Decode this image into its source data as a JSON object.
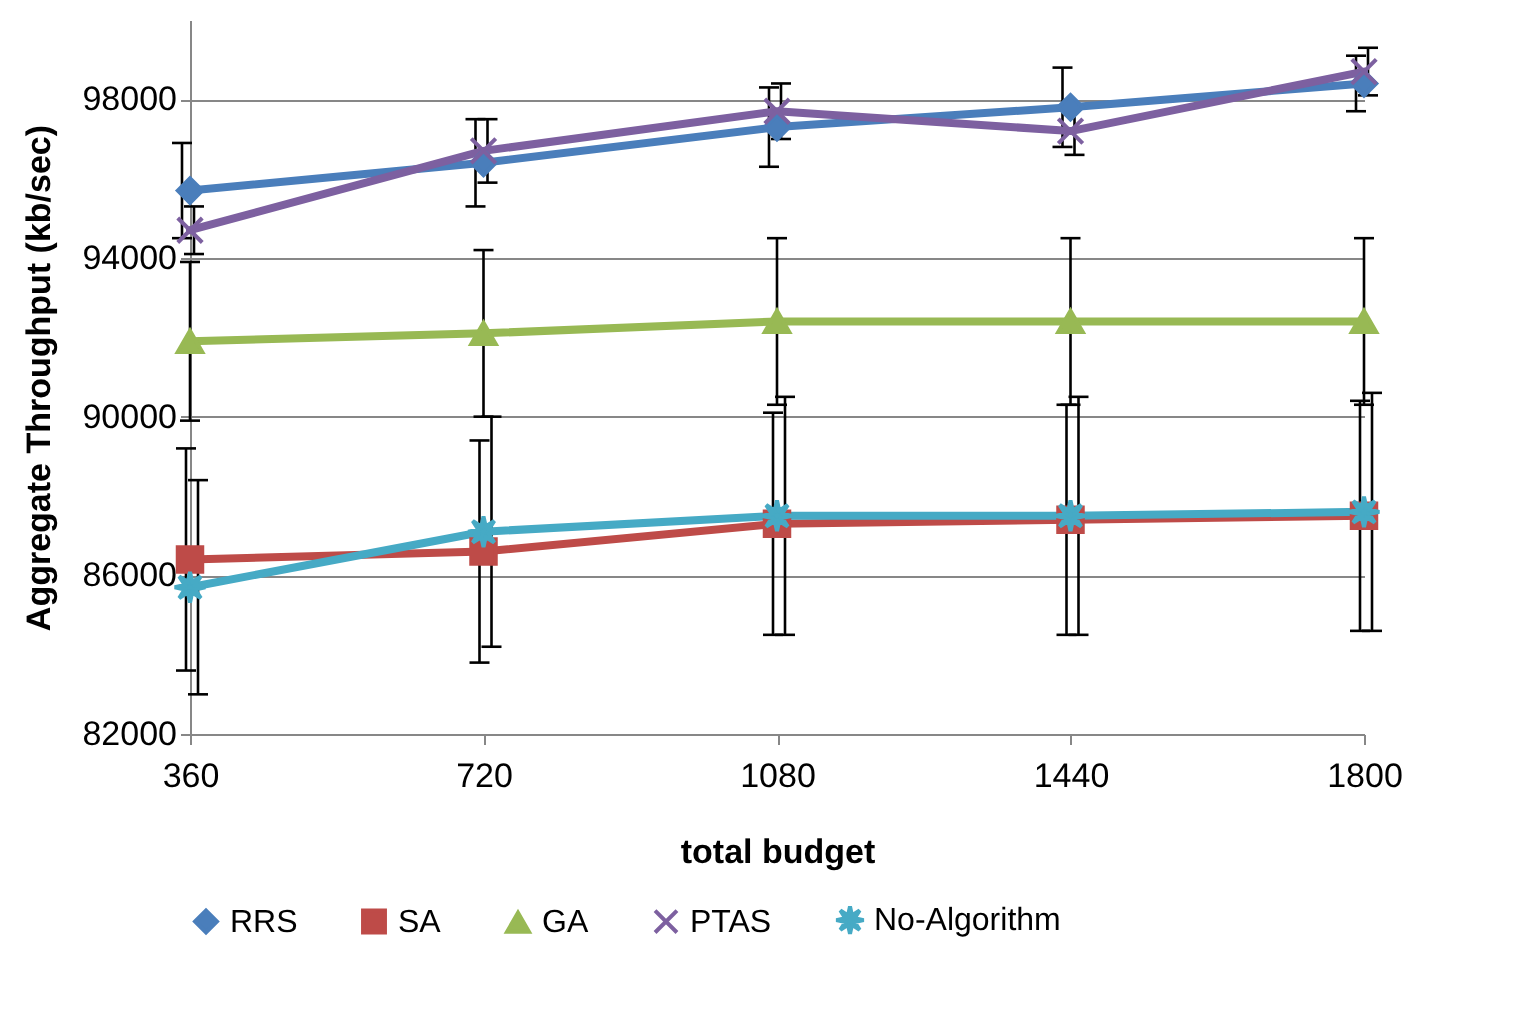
{
  "chart_data": {
    "type": "line",
    "xlabel": "total budget",
    "ylabel": "Aggregate Throughput (kb/sec)",
    "categories": [
      "360",
      "720",
      "1080",
      "1440",
      "1800"
    ],
    "series": [
      {
        "name": "RRS",
        "color": "#4a7ebb",
        "marker": "diamond",
        "values": [
          95700,
          96400,
          97300,
          97800,
          98400
        ],
        "errors": [
          1200,
          1100,
          1000,
          1000,
          700
        ]
      },
      {
        "name": "SA",
        "color": "#be4b48",
        "marker": "square",
        "values": [
          86400,
          86600,
          87300,
          87400,
          87500
        ],
        "errors": [
          2800,
          2800,
          2800,
          2900,
          2900
        ]
      },
      {
        "name": "GA",
        "color": "#98b954",
        "marker": "triangle",
        "values": [
          91900,
          92100,
          92400,
          92400,
          92400
        ],
        "errors": [
          2000,
          2100,
          2100,
          2100,
          2100
        ]
      },
      {
        "name": "PTAS",
        "color": "#7d60a0",
        "marker": "cross",
        "values": [
          94700,
          96700,
          97700,
          97200,
          98700
        ],
        "errors": [
          600,
          800,
          700,
          600,
          600
        ]
      },
      {
        "name": "No-Algorithm",
        "color": "#46aac5",
        "marker": "star",
        "values": [
          85700,
          87100,
          87500,
          87500,
          87600
        ],
        "errors": [
          2700,
          2900,
          3000,
          3000,
          3000
        ]
      }
    ],
    "ylim": [
      82000,
      100000
    ],
    "yticks": [
      82000,
      86000,
      90000,
      94000,
      98000
    ],
    "grid": "y",
    "legend": "bottom",
    "line_style": "solid"
  }
}
